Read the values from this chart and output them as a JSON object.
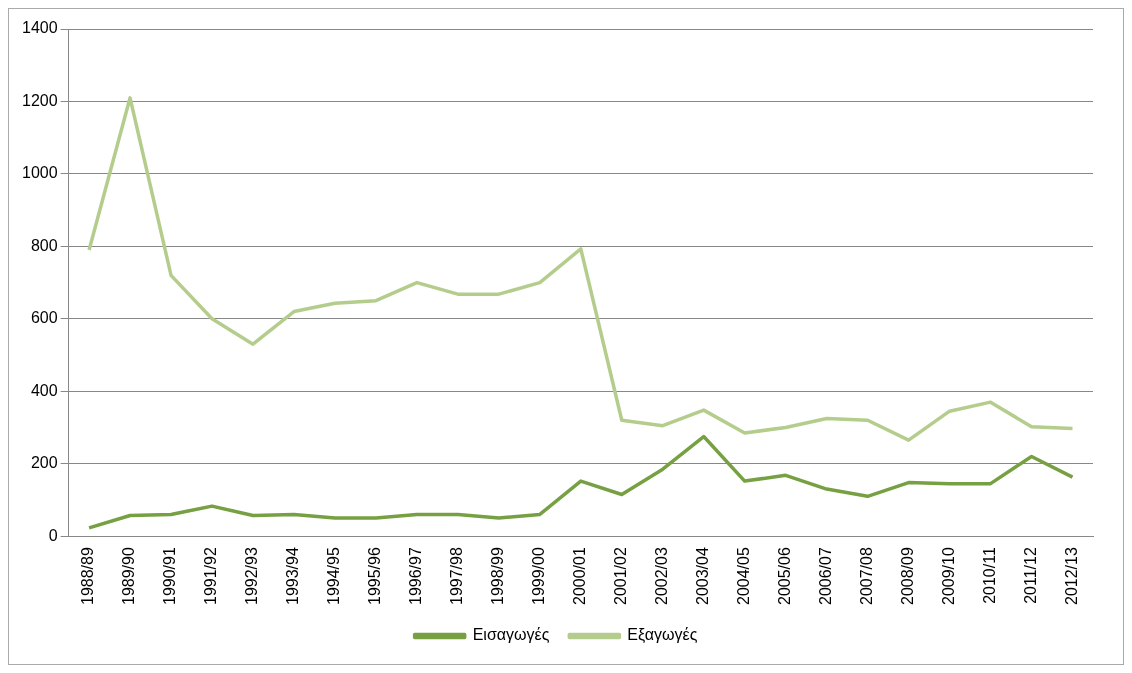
{
  "chart_data": {
    "type": "line",
    "categories": [
      "1988/89",
      "1989/90",
      "1990/91",
      "1991/92",
      "1992/93",
      "1993/94",
      "1994/95",
      "1995/96",
      "1996/97",
      "1997/98",
      "1998/99",
      "1999/00",
      "2000/01",
      "2001/02",
      "2002/03",
      "2003/04",
      "2004/05",
      "2005/06",
      "2006/07",
      "2007/08",
      "2008/09",
      "2009/10",
      "2010/11",
      "2011/12",
      "2012/13"
    ],
    "series": [
      {
        "name": "Εισαγωγές",
        "color": "#77a043",
        "values": [
          23,
          57,
          60,
          83,
          57,
          60,
          50,
          50,
          60,
          60,
          50,
          60,
          152,
          115,
          185,
          275,
          152,
          168,
          130,
          110,
          148,
          145,
          145,
          220,
          163
        ]
      },
      {
        "name": "Εξαγωγές",
        "color": "#b5cd8c",
        "values": [
          790,
          1210,
          720,
          600,
          530,
          620,
          643,
          650,
          700,
          668,
          668,
          700,
          793,
          320,
          305,
          348,
          285,
          300,
          325,
          320,
          265,
          345,
          370,
          302,
          297
        ]
      }
    ],
    "ylim": [
      0,
      1400
    ],
    "yticks": [
      0,
      200,
      400,
      600,
      800,
      1000,
      1200,
      1400
    ],
    "grid": "y",
    "legend": "bottom",
    "marker": "none",
    "line_style": "solid"
  }
}
